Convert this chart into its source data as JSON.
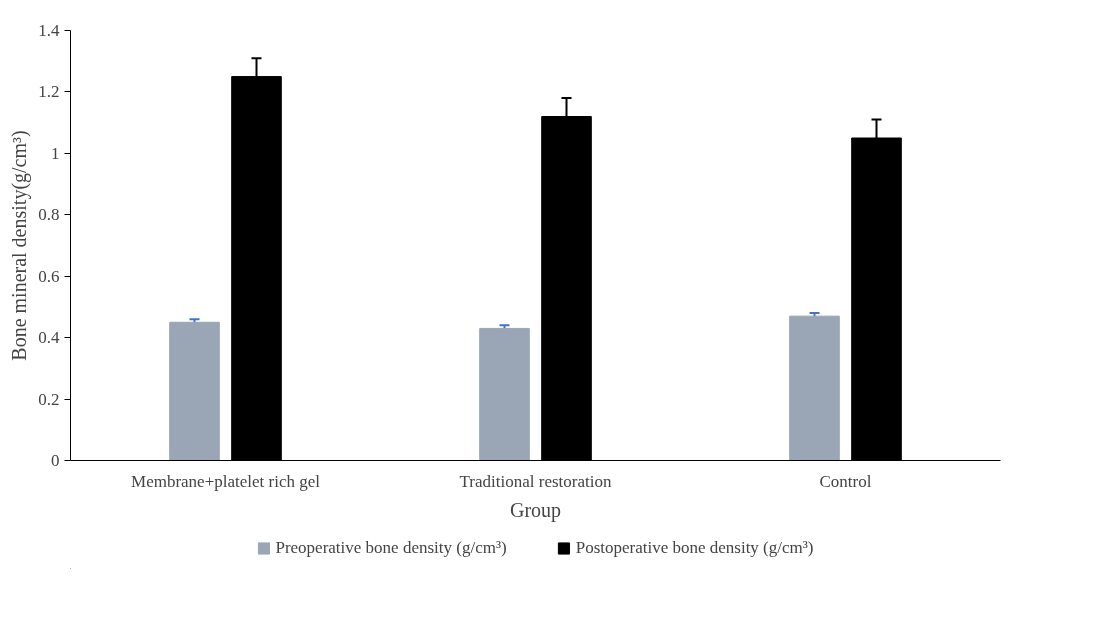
{
  "chart_data": {
    "type": "bar",
    "xlabel": "Group",
    "ylabel": "Bone mineral density(g/cm³)",
    "categories": [
      "Membrane+platelet rich gel",
      "Traditional restoration",
      "Control"
    ],
    "series": [
      {
        "name": "Preoperative bone density (g/cm³)",
        "color": "#9aa6b6",
        "values": [
          0.45,
          0.43,
          0.47
        ],
        "errors": [
          0.01,
          0.01,
          0.01
        ]
      },
      {
        "name": "Postoperative bone density (g/cm³)",
        "color": "#000000",
        "values": [
          1.25,
          1.12,
          1.05
        ],
        "errors": [
          0.06,
          0.06,
          0.06
        ]
      }
    ],
    "ylim": [
      0,
      1.4
    ],
    "yticks": [
      0,
      0.2,
      0.4,
      0.6,
      0.8,
      1,
      1.2,
      1.4
    ],
    "grid": false,
    "legend": "bottom"
  }
}
